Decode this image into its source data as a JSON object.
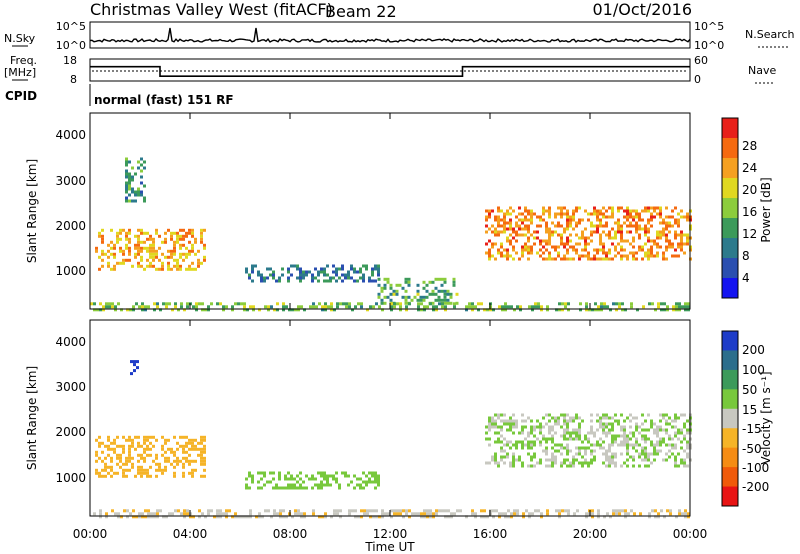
{
  "header": {
    "title": "Christmas Valley West (fitACF)",
    "beam": "Beam 22",
    "date": "01/Oct/2016"
  },
  "panels": {
    "nsky_label": "N.Sky",
    "nsky_ticks": [
      "10^5",
      "10^0"
    ],
    "nsearch_label": "N.Search",
    "nsearch_ticks": [
      "10^5",
      "10^0"
    ],
    "freq_label_1": "Freq.",
    "freq_label_2": "[MHz]",
    "freq_ticks": [
      "18",
      "8"
    ],
    "nave_label": "Nave",
    "nave_ticks": [
      "60",
      "0"
    ],
    "cpid_label": "CPID",
    "cpid_text": "normal (fast) 151 RF"
  },
  "power_panel": {
    "ylabel": "Slant Range [km]",
    "yticks": [
      "4000",
      "3000",
      "2000",
      "1000"
    ],
    "colorbar_label": "Power [dB]",
    "colorbar_ticks": [
      "28",
      "24",
      "20",
      "16",
      "12",
      "8",
      "4"
    ],
    "colorbar_colors": [
      "#e8201a",
      "#f56a10",
      "#f5a020",
      "#e0d820",
      "#8ccc3c",
      "#3c9a5a",
      "#2c7a8c",
      "#2a4fb0",
      "#1414f0"
    ]
  },
  "velocity_panel": {
    "ylabel": "Slant Range [km]",
    "yticks": [
      "4000",
      "3000",
      "2000",
      "1000"
    ],
    "colorbar_label": "Velocity [m s⁻¹]",
    "colorbar_ticks": [
      "200",
      "100",
      "50",
      "15",
      "-15",
      "-50",
      "-100",
      "-200"
    ],
    "colorbar_colors": [
      "#1e3cc8",
      "#2c6e8c",
      "#3c9a5a",
      "#78c83c",
      "#c8c8c0",
      "#f5b428",
      "#f58c14",
      "#f05a0a",
      "#e81414"
    ]
  },
  "x_axis": {
    "label": "Time UT",
    "ticks": [
      "00:00",
      "04:00",
      "08:00",
      "12:00",
      "16:00",
      "20:00",
      "00:00"
    ]
  },
  "chart_data": {
    "type": "heatmap",
    "xlabel": "Time UT",
    "ylabel": "Slant Range [km]",
    "xlim_hours": [
      0,
      24
    ],
    "ylim_km": [
      200,
      4600
    ],
    "frequency_steps_mhz": [
      {
        "start_hour": 0,
        "end_hour": 2.8,
        "value": 14.5
      },
      {
        "start_hour": 2.8,
        "end_hour": 14.9,
        "value": 10.2
      },
      {
        "start_hour": 14.9,
        "end_hour": 24,
        "value": 14.5
      }
    ],
    "power_regions": [
      {
        "start_hour": 0.2,
        "end_hour": 4.6,
        "range_start_km": 1100,
        "range_end_km": 2000,
        "power_db": 22
      },
      {
        "start_hour": 1.4,
        "end_hour": 2.2,
        "range_start_km": 2600,
        "range_end_km": 3600,
        "power_db": 10
      },
      {
        "start_hour": 6.2,
        "end_hour": 11.5,
        "range_start_km": 800,
        "range_end_km": 1200,
        "power_db": 8
      },
      {
        "start_hour": 11.5,
        "end_hour": 14.7,
        "range_start_km": 300,
        "range_end_km": 900,
        "power_db": 12
      },
      {
        "start_hour": 15.8,
        "end_hour": 24.0,
        "range_start_km": 1300,
        "range_end_km": 2500,
        "power_db": 24
      },
      {
        "start_hour": 0.0,
        "end_hour": 24.0,
        "range_start_km": 200,
        "range_end_km": 350,
        "power_db": 14
      }
    ],
    "velocity_regions": [
      {
        "start_hour": 0.2,
        "end_hour": 4.6,
        "range_start_km": 1100,
        "range_end_km": 2000,
        "velocity_ms": -40
      },
      {
        "start_hour": 1.6,
        "end_hour": 1.9,
        "range_start_km": 3400,
        "range_end_km": 3700,
        "velocity_ms": 200
      },
      {
        "start_hour": 6.2,
        "end_hour": 11.5,
        "range_start_km": 800,
        "range_end_km": 1200,
        "velocity_ms": 20
      },
      {
        "start_hour": 15.8,
        "end_hour": 24.0,
        "range_start_km": 1300,
        "range_end_km": 2500,
        "velocity_ms": 0
      },
      {
        "start_hour": 0.0,
        "end_hour": 24.0,
        "range_start_km": 200,
        "range_end_km": 350,
        "velocity_ms": -30
      }
    ]
  }
}
